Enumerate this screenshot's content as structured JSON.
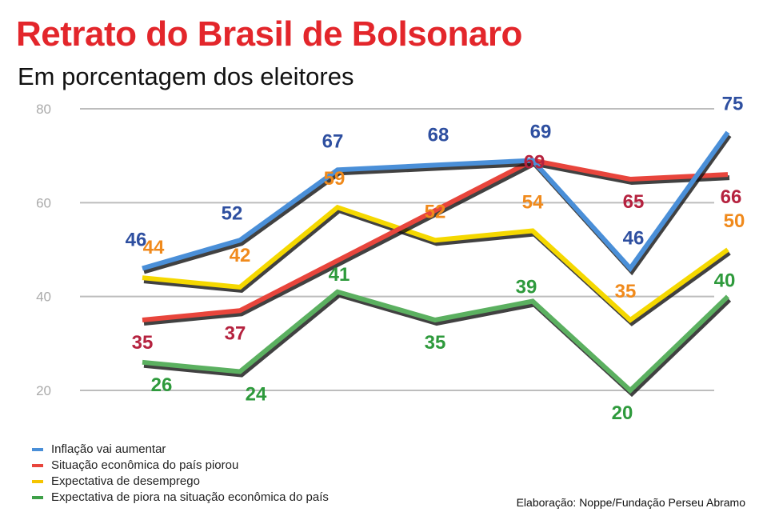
{
  "header": {
    "title": "Retrato do Brasil de Bolsonaro",
    "subtitle": "Em porcentagem dos eleitores"
  },
  "chart_data": {
    "type": "line",
    "title": "Retrato do Brasil de Bolsonaro",
    "subtitle": "Em porcentagem dos eleitores",
    "ylim": [
      20,
      80
    ],
    "yticks": [
      "20",
      "40",
      "60",
      "80"
    ],
    "grid": true,
    "legend": "bottom-left",
    "series": [
      {
        "name": "Inflação vai aumentar",
        "line_color": "#4a8fd8",
        "label_color": "#2e4fa0",
        "values": [
          46,
          52,
          67,
          68,
          69,
          46,
          75
        ]
      },
      {
        "name": "Situação econômica do país piorou",
        "line_color": "#e8453c",
        "label_color": "#b5223f",
        "values": [
          35,
          37,
          null,
          null,
          69,
          65,
          66
        ]
      },
      {
        "name": "Expectativa de desemprego",
        "line_color": "#f5d800",
        "label_color": "#f08a1c",
        "values": [
          44,
          42,
          59,
          52,
          54,
          35,
          50
        ]
      },
      {
        "name": "Expectativa de piora na situação econômica do país",
        "line_color": "#5bb060",
        "label_color": "#2e9a3c",
        "values": [
          26,
          24,
          41,
          35,
          39,
          20,
          40
        ]
      }
    ]
  },
  "source": "Elaboração: Noppe/Fundação Perseu Abramo"
}
